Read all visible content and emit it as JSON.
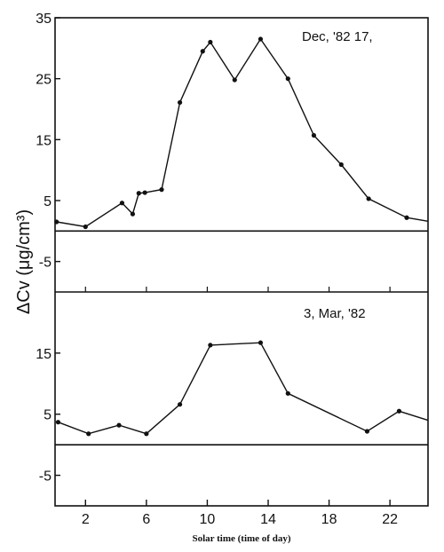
{
  "chart_data": {
    "type": "line",
    "xlabel": "Solar time (time of day)",
    "ylabel": "ΔCv (μg/cm³)",
    "xlim": [
      0,
      24.5
    ],
    "x_ticks": [
      2,
      6,
      10,
      14,
      18,
      22
    ],
    "grid": false,
    "panels": [
      {
        "annotation": "Dec, '82   17,",
        "ylim": [
          -10,
          35
        ],
        "y_ticks": [
          35,
          25,
          15,
          5,
          -5
        ],
        "zero_line": true,
        "series": [
          {
            "x": [
              0.1,
              2.0,
              4.4,
              5.1,
              5.5,
              5.9,
              7.0,
              8.2,
              9.7,
              10.2,
              11.8,
              13.5,
              15.3,
              17.0,
              18.8,
              20.6,
              23.1,
              24.5
            ],
            "y": [
              1.5,
              0.7,
              4.6,
              2.8,
              6.2,
              6.3,
              6.8,
              21.1,
              29.5,
              31.0,
              24.8,
              31.5,
              25.0,
              15.7,
              10.9,
              5.3,
              2.2,
              1.6
            ]
          }
        ]
      },
      {
        "annotation": "3,  Mar, '82",
        "ylim": [
          -10,
          25
        ],
        "y_ticks": [
          15,
          5,
          -5
        ],
        "zero_line": true,
        "series": [
          {
            "x": [
              0.2,
              2.2,
              4.2,
              6.0,
              8.2,
              10.2,
              13.5,
              15.3,
              20.5,
              22.6,
              24.5
            ],
            "y": [
              3.7,
              1.8,
              3.2,
              1.8,
              6.6,
              16.3,
              16.7,
              8.4,
              2.2,
              5.5,
              4.0
            ]
          }
        ]
      }
    ]
  }
}
